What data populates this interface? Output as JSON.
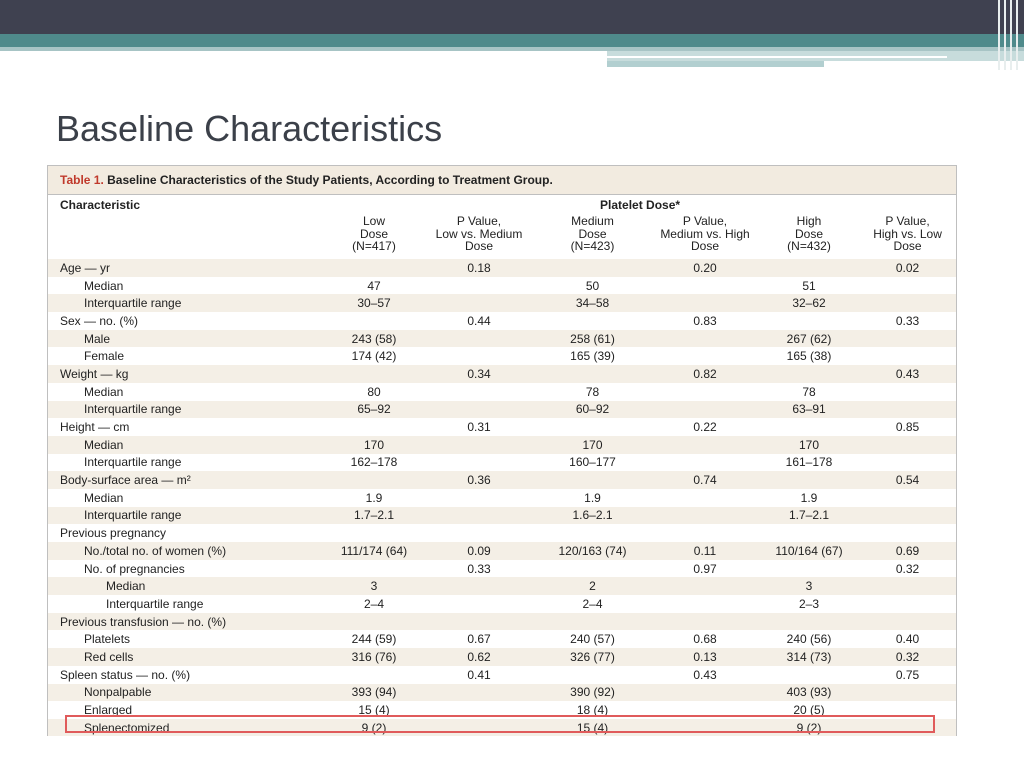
{
  "slide": {
    "title": "Baseline Characteristics"
  },
  "table": {
    "caption_num": "Table 1.",
    "caption_text": " Baseline Characteristics of the Study Patients, According to Treatment Group.",
    "char_header": "Characteristic",
    "group_header": "Platelet Dose*",
    "columns": [
      [
        "Low",
        "Dose",
        "(N=417)"
      ],
      [
        "P Value,",
        "Low vs. Medium",
        "Dose"
      ],
      [
        "Medium",
        "Dose",
        "(N=423)"
      ],
      [
        "P Value,",
        "Medium vs. High",
        "Dose"
      ],
      [
        "High",
        "Dose",
        "(N=432)"
      ],
      [
        "P Value,",
        "High vs. Low",
        "Dose"
      ]
    ],
    "rows": [
      {
        "label": "Age — yr",
        "indent": 0,
        "values": [
          "",
          "0.18",
          "",
          "0.20",
          "",
          "0.02"
        ]
      },
      {
        "label": "Median",
        "indent": 1,
        "values": [
          "47",
          "",
          "50",
          "",
          "51",
          ""
        ]
      },
      {
        "label": "Interquartile range",
        "indent": 1,
        "values": [
          "30–57",
          "",
          "34–58",
          "",
          "32–62",
          ""
        ]
      },
      {
        "label": "Sex — no. (%)",
        "indent": 0,
        "values": [
          "",
          "0.44",
          "",
          "0.83",
          "",
          "0.33"
        ]
      },
      {
        "label": "Male",
        "indent": 1,
        "values": [
          "243 (58)",
          "",
          "258 (61)",
          "",
          "267 (62)",
          ""
        ]
      },
      {
        "label": "Female",
        "indent": 1,
        "values": [
          "174 (42)",
          "",
          "165 (39)",
          "",
          "165 (38)",
          ""
        ]
      },
      {
        "label": "Weight — kg",
        "indent": 0,
        "values": [
          "",
          "0.34",
          "",
          "0.82",
          "",
          "0.43"
        ]
      },
      {
        "label": "Median",
        "indent": 1,
        "values": [
          "80",
          "",
          "78",
          "",
          "78",
          ""
        ]
      },
      {
        "label": "Interquartile range",
        "indent": 1,
        "values": [
          "65–92",
          "",
          "60–92",
          "",
          "63–91",
          ""
        ]
      },
      {
        "label": "Height — cm",
        "indent": 0,
        "values": [
          "",
          "0.31",
          "",
          "0.22",
          "",
          "0.85"
        ]
      },
      {
        "label": "Median",
        "indent": 1,
        "values": [
          "170",
          "",
          "170",
          "",
          "170",
          ""
        ]
      },
      {
        "label": "Interquartile range",
        "indent": 1,
        "values": [
          "162–178",
          "",
          "160–177",
          "",
          "161–178",
          ""
        ]
      },
      {
        "label": "Body-surface area — m²",
        "indent": 0,
        "values": [
          "",
          "0.36",
          "",
          "0.74",
          "",
          "0.54"
        ]
      },
      {
        "label": "Median",
        "indent": 1,
        "values": [
          "1.9",
          "",
          "1.9",
          "",
          "1.9",
          ""
        ]
      },
      {
        "label": "Interquartile range",
        "indent": 1,
        "values": [
          "1.7–2.1",
          "",
          "1.6–2.1",
          "",
          "1.7–2.1",
          ""
        ]
      },
      {
        "label": "Previous pregnancy",
        "indent": 0,
        "values": [
          "",
          "",
          "",
          "",
          "",
          ""
        ]
      },
      {
        "label": "No./total no. of women (%)",
        "indent": 1,
        "values": [
          "111/174 (64)",
          "0.09",
          "120/163 (74)",
          "0.11",
          "110/164 (67)",
          "0.69"
        ]
      },
      {
        "label": "No. of pregnancies",
        "indent": 1,
        "values": [
          "",
          "0.33",
          "",
          "0.97",
          "",
          "0.32"
        ]
      },
      {
        "label": "Median",
        "indent": 2,
        "values": [
          "3",
          "",
          "2",
          "",
          "3",
          ""
        ]
      },
      {
        "label": "Interquartile range",
        "indent": 2,
        "values": [
          "2–4",
          "",
          "2–4",
          "",
          "2–3",
          ""
        ]
      },
      {
        "label": "Previous transfusion — no. (%)",
        "indent": 0,
        "values": [
          "",
          "",
          "",
          "",
          "",
          ""
        ]
      },
      {
        "label": "Platelets",
        "indent": 1,
        "values": [
          "244 (59)",
          "0.67",
          "240 (57)",
          "0.68",
          "240 (56)",
          "0.40"
        ]
      },
      {
        "label": "Red cells",
        "indent": 1,
        "values": [
          "316 (76)",
          "0.62",
          "326 (77)",
          "0.13",
          "314 (73)",
          "0.32"
        ]
      },
      {
        "label": "Spleen status — no. (%)",
        "indent": 0,
        "values": [
          "",
          "0.41",
          "",
          "0.43",
          "",
          "0.75"
        ]
      },
      {
        "label": "Nonpalpable",
        "indent": 1,
        "values": [
          "393 (94)",
          "",
          "390 (92)",
          "",
          "403 (93)",
          ""
        ]
      },
      {
        "label": "Enlarged",
        "indent": 1,
        "values": [
          "15 (4)",
          "",
          "18 (4)",
          "",
          "20 (5)",
          ""
        ]
      },
      {
        "label": "Splenectomized",
        "indent": 1,
        "values": [
          "9 (2)",
          "",
          "15 (4)",
          "",
          "9 (2)",
          ""
        ]
      }
    ]
  },
  "colors": {
    "caption_red": "#c0392b",
    "stripe": "#f4efe6",
    "highlight_border": "#e05b5b"
  }
}
